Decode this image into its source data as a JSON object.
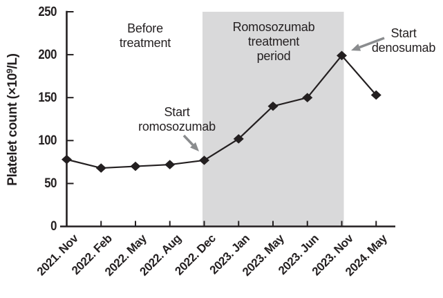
{
  "figure": {
    "background": "#ffffff",
    "axis_color": "#231f20",
    "line_color": "#231f20",
    "text_color": "#231f20",
    "shaded_region_color": "#d9d9da",
    "arrow_color": "#8a8c8e"
  },
  "ylabel_parts": {
    "prefix": "Platelet count (×10",
    "sup": "9",
    "suffix": "/L)"
  },
  "annotations": {
    "before_treatment": "Before\ntreatment",
    "romosozumab_period": "Romosozumab\ntreatment\nperiod",
    "start_romosozumab": "Start\nromosozumab",
    "start_denosumab": "Start\ndenosumab"
  },
  "chart_data": {
    "type": "line",
    "title": "",
    "xlabel": "",
    "ylabel": "Platelet count (×10⁹/L)",
    "categories": [
      "2021. Nov",
      "2022. Feb",
      "2022. May",
      "2022. Aug",
      "2022. Dec",
      "2023. Jan",
      "2023. May",
      "2023. Jun",
      "2023. Nov",
      "2024. May"
    ],
    "values": [
      78,
      68,
      70,
      72,
      77,
      102,
      140,
      150,
      199,
      153
    ],
    "series_name": "Platelet count",
    "marker": "diamond",
    "ylim": [
      0,
      250
    ],
    "yticks": [
      0,
      50,
      100,
      150,
      200,
      250
    ],
    "xtick_rotation": 45,
    "grid": false,
    "legend": "none",
    "shaded_region": {
      "label": "Romosozumab treatment period",
      "from_category": "2022. Dec",
      "to_category": "2023. Nov"
    },
    "events": [
      {
        "label": "Start romosozumab",
        "category": "2022. Dec",
        "value": 77
      },
      {
        "label": "Start denosumab",
        "category": "2023. Nov",
        "value": 199
      }
    ]
  }
}
